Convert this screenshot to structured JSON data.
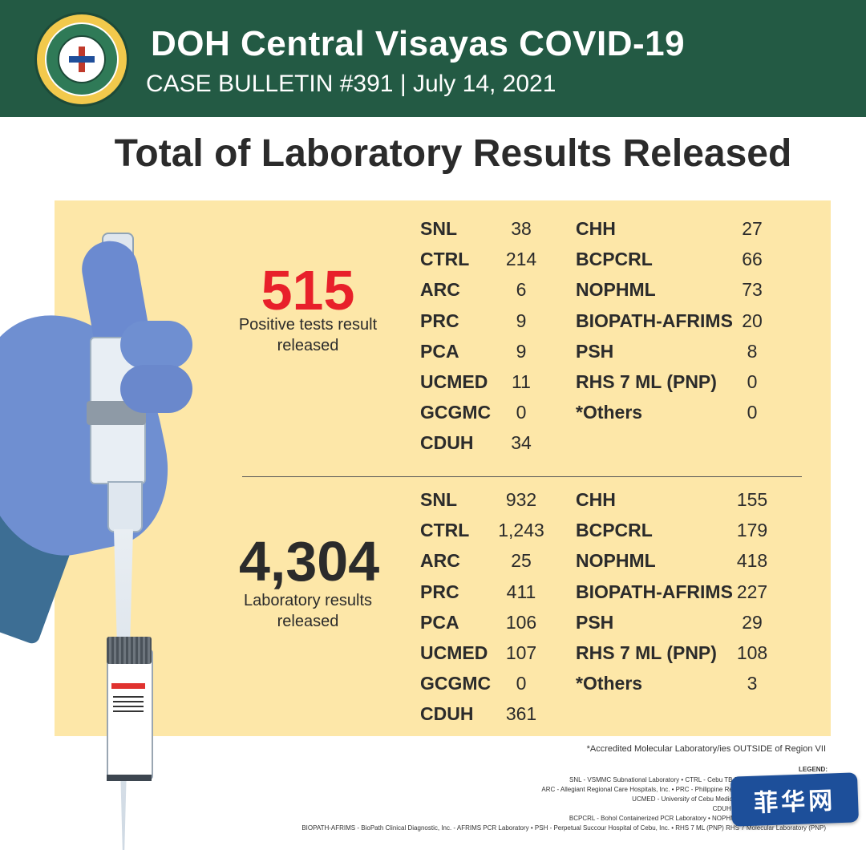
{
  "header": {
    "title": "DOH Central Visayas COVID-19",
    "subtitle": "CASE BULLETIN #391 | July 14, 2021",
    "seal_icon": "department-of-health-seal",
    "colors": {
      "header_bg": "#235a44",
      "panel_bg": "#fde7a8",
      "positive_red": "#e8202a"
    }
  },
  "page_title": "Total of Laboratory Results Released",
  "positive": {
    "number": "515",
    "caption_line1": "Positive tests result",
    "caption_line2": "released",
    "labs_left": [
      {
        "name": "SNL",
        "value": "38"
      },
      {
        "name": "CTRL",
        "value": "214"
      },
      {
        "name": "ARC",
        "value": "6"
      },
      {
        "name": "PRC",
        "value": "9"
      },
      {
        "name": "PCA",
        "value": "9"
      },
      {
        "name": "UCMED",
        "value": "11"
      },
      {
        "name": "GCGMC",
        "value": "0"
      },
      {
        "name": "CDUH",
        "value": "34"
      }
    ],
    "labs_right": [
      {
        "name": "CHH",
        "value": "27"
      },
      {
        "name": "BCPCRL",
        "value": "66"
      },
      {
        "name": "NOPHML",
        "value": "73"
      },
      {
        "name": "BIOPATH-AFRIMS",
        "value": "20"
      },
      {
        "name": "PSH",
        "value": "8"
      },
      {
        "name": "RHS 7 ML (PNP)",
        "value": "0"
      },
      {
        "name": "*Others",
        "value": "0"
      }
    ]
  },
  "laboratory": {
    "number": "4,304",
    "caption_line1": "Laboratory results",
    "caption_line2": "released",
    "labs_left": [
      {
        "name": "SNL",
        "value": "932"
      },
      {
        "name": "CTRL",
        "value": "1,243"
      },
      {
        "name": "ARC",
        "value": "25"
      },
      {
        "name": "PRC",
        "value": "411"
      },
      {
        "name": "PCA",
        "value": "106"
      },
      {
        "name": "UCMED",
        "value": "107"
      },
      {
        "name": "GCGMC",
        "value": "0"
      },
      {
        "name": "CDUH",
        "value": "361"
      }
    ],
    "labs_right": [
      {
        "name": "CHH",
        "value": "155"
      },
      {
        "name": "BCPCRL",
        "value": "179"
      },
      {
        "name": "NOPHML",
        "value": "418"
      },
      {
        "name": "BIOPATH-AFRIMS",
        "value": "227"
      },
      {
        "name": "PSH",
        "value": "29"
      },
      {
        "name": "RHS 7 ML (PNP)",
        "value": "108"
      },
      {
        "name": "*Others",
        "value": "3"
      }
    ]
  },
  "footnote": "*Accredited Molecular Laboratory/ies OUTSIDE of Region VII",
  "legend": {
    "title": "LEGEND:",
    "lines": [
      "SNL - VSMMC Subnational Laboratory • CTRL - Cebu TB Reference Laboratory Molecular",
      "ARC - Allegiant Regional Care Hospitals, Inc. • PRC - Philippine Red Cross • PCA - Prime Care Alph",
      "UCMED - University of Cebu Medical Center • GCGMH - Gov. Celes",
      "CDUH - Cebu Doctors University Hospit",
      "BCPCRL - Bohol Containerized PCR Laboratory • NOPHML - Negros Oriental Provincial H",
      "BIOPATH-AFRIMS - BioPath Clinical Diagnostic, Inc. - AFRIMS PCR Laboratory • PSH - Perpetual Succour Hospital of Cebu, Inc. • RHS 7 ML (PNP) RHS 7 Molecular Laboratory (PNP)"
    ]
  },
  "watermark": "菲华网"
}
